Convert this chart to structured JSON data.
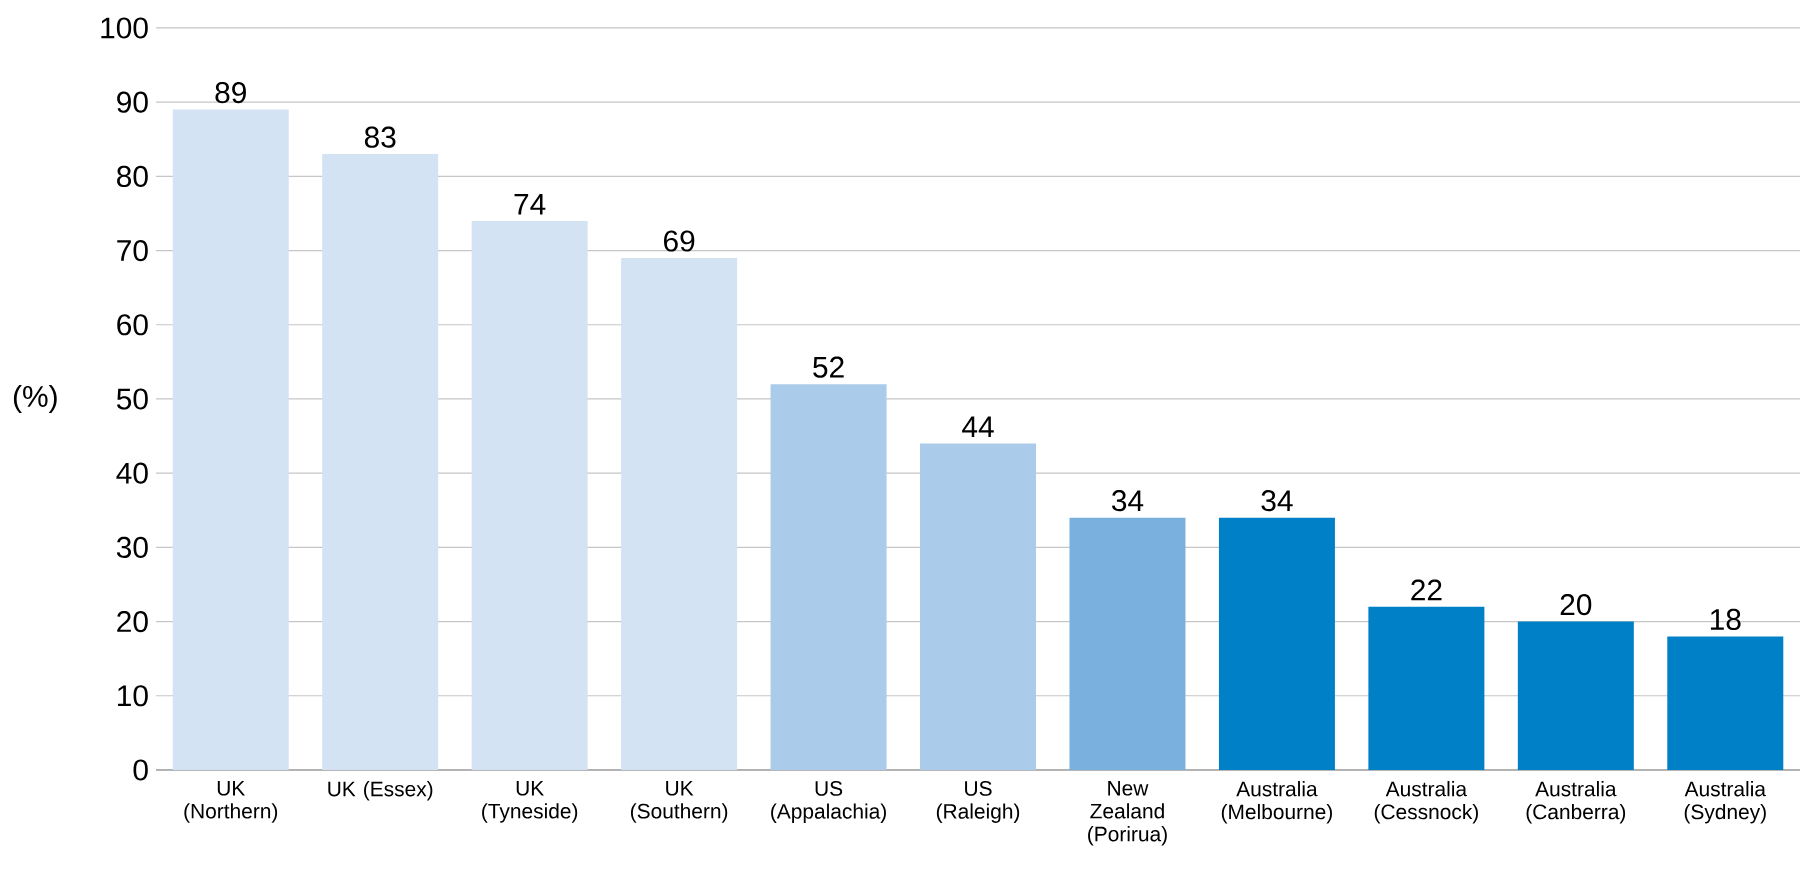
{
  "chart_data": {
    "type": "bar",
    "ylabel": "(%)",
    "categories": [
      "UK (Northern)",
      "UK (Essex)",
      "UK (Tyneside)",
      "UK (Southern)",
      "US (Appalachia)",
      "US (Raleigh)",
      "New Zealand (Porirua)",
      "Australia (Melbourne)",
      "Australia (Cessnock)",
      "Australia (Canberra)",
      "Australia (Sydney)"
    ],
    "values": [
      89,
      83,
      74,
      69,
      52,
      44,
      34,
      34,
      22,
      20,
      18
    ],
    "colors": [
      "#d4e3f3",
      "#d4e3f3",
      "#d4e3f3",
      "#d4e3f3",
      "#aacbea",
      "#aacbea",
      "#7ab0de",
      "#0080c6",
      "#0080c6",
      "#0080c6",
      "#0080c6"
    ],
    "ylim": [
      0,
      100
    ],
    "yticks": [
      0,
      10,
      20,
      30,
      40,
      50,
      60,
      70,
      80,
      90,
      100
    ],
    "grid": "y",
    "data_labels": true
  }
}
